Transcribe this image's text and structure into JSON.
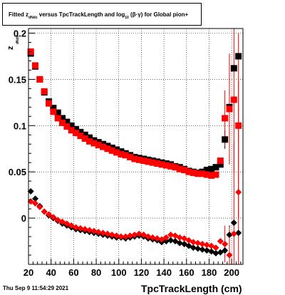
{
  "chart_data": {
    "type": "scatter",
    "title_parts": {
      "fitted": "Fitted",
      "z": "z",
      "z_sub": "dNdx",
      "versus": "versus TpcTrackLength and log",
      "log_sub": "10",
      "tail": "(β·γ) for Global pion+"
    },
    "xlabel": "TpcTrackLength (cm)",
    "ylabel": "z",
    "ylabel_sub": "dNdx",
    "xlim": [
      20,
      210
    ],
    "ylim": [
      -0.05,
      0.205
    ],
    "x_ticks": [
      20,
      40,
      60,
      80,
      100,
      120,
      140,
      160,
      180,
      200
    ],
    "y_ticks": [
      0,
      0.05,
      0.1,
      0.15,
      0.2
    ],
    "y_tick_labels": [
      "0",
      "0.05",
      "0.1",
      "0.15",
      "0.2"
    ],
    "grid": true,
    "series": [
      {
        "marker": "square",
        "color": "#000000",
        "x": [
          22,
          26,
          30,
          34,
          38,
          42,
          46,
          50,
          54,
          58,
          62,
          66,
          70,
          74,
          78,
          82,
          86,
          90,
          94,
          98,
          102,
          106,
          110,
          114,
          118,
          122,
          126,
          130,
          134,
          138,
          142,
          146,
          150,
          154,
          158,
          162,
          166,
          170,
          174,
          178,
          182,
          186,
          190,
          194,
          198,
          202,
          206
        ],
        "y": [
          0.178,
          0.164,
          0.15,
          0.136,
          0.126,
          0.119,
          0.114,
          0.108,
          0.104,
          0.1,
          0.096,
          0.093,
          0.09,
          0.087,
          0.084,
          0.082,
          0.08,
          0.078,
          0.076,
          0.074,
          0.072,
          0.07,
          0.068,
          0.066,
          0.065,
          0.064,
          0.063,
          0.062,
          0.061,
          0.06,
          0.059,
          0.058,
          0.056,
          0.055,
          0.053,
          0.051,
          0.05,
          0.049,
          0.05,
          0.052,
          0.053,
          0.055,
          0.058,
          0.085,
          0.12,
          0.162,
          0.175
        ],
        "err": [
          0,
          0,
          0,
          0,
          0,
          0,
          0,
          0,
          0,
          0,
          0,
          0,
          0,
          0,
          0,
          0,
          0,
          0,
          0,
          0,
          0,
          0,
          0,
          0,
          0,
          0,
          0,
          0,
          0,
          0,
          0,
          0,
          0,
          0,
          0,
          0,
          0,
          0,
          0,
          0,
          0,
          0,
          0,
          0.01,
          0.02,
          0,
          0
        ]
      },
      {
        "marker": "square",
        "color": "#ff0000",
        "x": [
          22,
          26,
          30,
          34,
          38,
          42,
          46,
          50,
          54,
          58,
          62,
          66,
          70,
          74,
          78,
          82,
          86,
          90,
          94,
          98,
          102,
          106,
          110,
          114,
          118,
          122,
          126,
          130,
          134,
          138,
          142,
          146,
          150,
          154,
          158,
          162,
          166,
          170,
          174,
          178,
          182,
          186,
          190,
          194,
          198,
          202,
          206
        ],
        "y": [
          0.18,
          0.165,
          0.15,
          0.137,
          0.124,
          0.115,
          0.108,
          0.103,
          0.099,
          0.095,
          0.092,
          0.089,
          0.086,
          0.083,
          0.081,
          0.079,
          0.077,
          0.075,
          0.073,
          0.071,
          0.069,
          0.068,
          0.066,
          0.064,
          0.063,
          0.062,
          0.061,
          0.06,
          0.059,
          0.058,
          0.057,
          0.056,
          0.055,
          0.053,
          0.052,
          0.05,
          0.049,
          0.048,
          0.048,
          0.047,
          0.046,
          0.047,
          0.062,
          0.108,
          0.118,
          0.128,
          0.1
        ],
        "err": [
          0,
          0,
          0,
          0,
          0,
          0,
          0,
          0,
          0,
          0,
          0,
          0,
          0,
          0,
          0,
          0,
          0,
          0,
          0,
          0,
          0,
          0,
          0,
          0,
          0,
          0,
          0,
          0,
          0,
          0,
          0,
          0,
          0,
          0,
          0,
          0,
          0,
          0,
          0,
          0,
          0,
          0,
          0,
          0.03,
          0.06,
          0.08,
          0.1
        ]
      },
      {
        "marker": "diamond",
        "color": "#000000",
        "x": [
          22,
          26,
          30,
          34,
          38,
          42,
          46,
          50,
          54,
          58,
          62,
          66,
          70,
          74,
          78,
          82,
          86,
          90,
          94,
          98,
          102,
          106,
          110,
          114,
          118,
          122,
          126,
          130,
          134,
          138,
          142,
          146,
          150,
          154,
          158,
          162,
          166,
          170,
          174,
          178,
          182,
          186,
          190,
          194,
          198,
          202,
          206
        ],
        "y": [
          0.029,
          0.021,
          0.013,
          0.007,
          0.003,
          0,
          -0.003,
          -0.006,
          -0.008,
          -0.01,
          -0.012,
          -0.013,
          -0.014,
          -0.015,
          -0.016,
          -0.017,
          -0.018,
          -0.019,
          -0.02,
          -0.021,
          -0.021,
          -0.022,
          -0.021,
          -0.02,
          -0.019,
          -0.02,
          -0.022,
          -0.023,
          -0.024,
          -0.026,
          -0.025,
          -0.024,
          -0.025,
          -0.027,
          -0.028,
          -0.03,
          -0.032,
          -0.033,
          -0.034,
          -0.035,
          -0.036,
          -0.038,
          -0.037,
          -0.035,
          -0.018,
          -0.005,
          -0.016
        ],
        "err": [
          0,
          0,
          0,
          0,
          0,
          0,
          0,
          0,
          0,
          0,
          0,
          0,
          0,
          0,
          0,
          0,
          0,
          0,
          0,
          0,
          0,
          0,
          0,
          0,
          0,
          0,
          0,
          0,
          0,
          0,
          0,
          0,
          0,
          0,
          0,
          0,
          0,
          0,
          0,
          0,
          0,
          0,
          0,
          0,
          0.01,
          0,
          0
        ]
      },
      {
        "marker": "diamond",
        "color": "#ff0000",
        "x": [
          22,
          26,
          30,
          34,
          38,
          42,
          46,
          50,
          54,
          58,
          62,
          66,
          70,
          74,
          78,
          82,
          86,
          90,
          94,
          98,
          102,
          106,
          110,
          114,
          118,
          122,
          126,
          130,
          134,
          138,
          142,
          146,
          150,
          154,
          158,
          162,
          166,
          170,
          174,
          178,
          182,
          186,
          190,
          194,
          198,
          202,
          206
        ],
        "y": [
          0.018,
          0.016,
          0.012,
          0.007,
          0.004,
          0.001,
          -0.002,
          -0.004,
          -0.006,
          -0.008,
          -0.01,
          -0.011,
          -0.012,
          -0.013,
          -0.014,
          -0.015,
          -0.016,
          -0.017,
          -0.018,
          -0.019,
          -0.02,
          -0.02,
          -0.019,
          -0.018,
          -0.017,
          -0.018,
          -0.02,
          -0.021,
          -0.022,
          -0.023,
          -0.021,
          -0.018,
          -0.019,
          -0.021,
          -0.022,
          -0.024,
          -0.026,
          -0.027,
          -0.028,
          -0.029,
          -0.03,
          -0.032,
          -0.025,
          -0.028,
          -0.04,
          -0.017,
          0.028
        ],
        "err": [
          0,
          0,
          0,
          0,
          0,
          0,
          0,
          0,
          0,
          0,
          0,
          0,
          0,
          0,
          0,
          0,
          0,
          0,
          0,
          0,
          0,
          0,
          0,
          0,
          0,
          0,
          0,
          0,
          0,
          0,
          0,
          0,
          0,
          0,
          0,
          0,
          0,
          0,
          0,
          0,
          0,
          0,
          0,
          0.02,
          0.03,
          0.1,
          0.12
        ]
      }
    ]
  },
  "footer": {
    "timestamp": "Thu Sep  9 11:54:29 2021"
  }
}
